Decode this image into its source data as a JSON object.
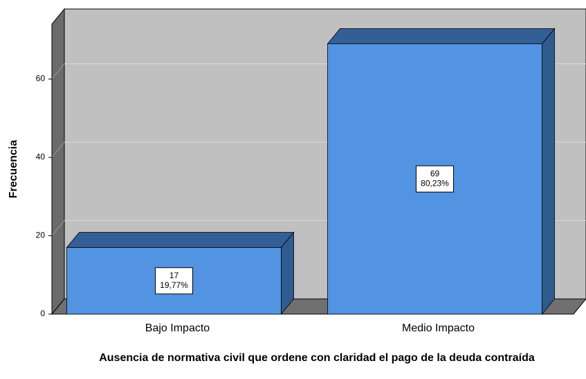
{
  "chart_data": {
    "type": "bar3d",
    "title": "Ausencia de normativa civil que ordene con claridad el pago de la deuda contraída",
    "ylabel": "Frecuencia",
    "categories": [
      "Bajo Impacto",
      "Medio Impacto"
    ],
    "values": [
      17,
      69
    ],
    "percentages": [
      19.77,
      80.23
    ],
    "percentage_labels": [
      "19,77%",
      "80,23%"
    ],
    "color": "#5294e2",
    "ylim": [
      0,
      74
    ],
    "yticks": [
      0,
      20,
      40,
      60
    ],
    "grid": true
  }
}
